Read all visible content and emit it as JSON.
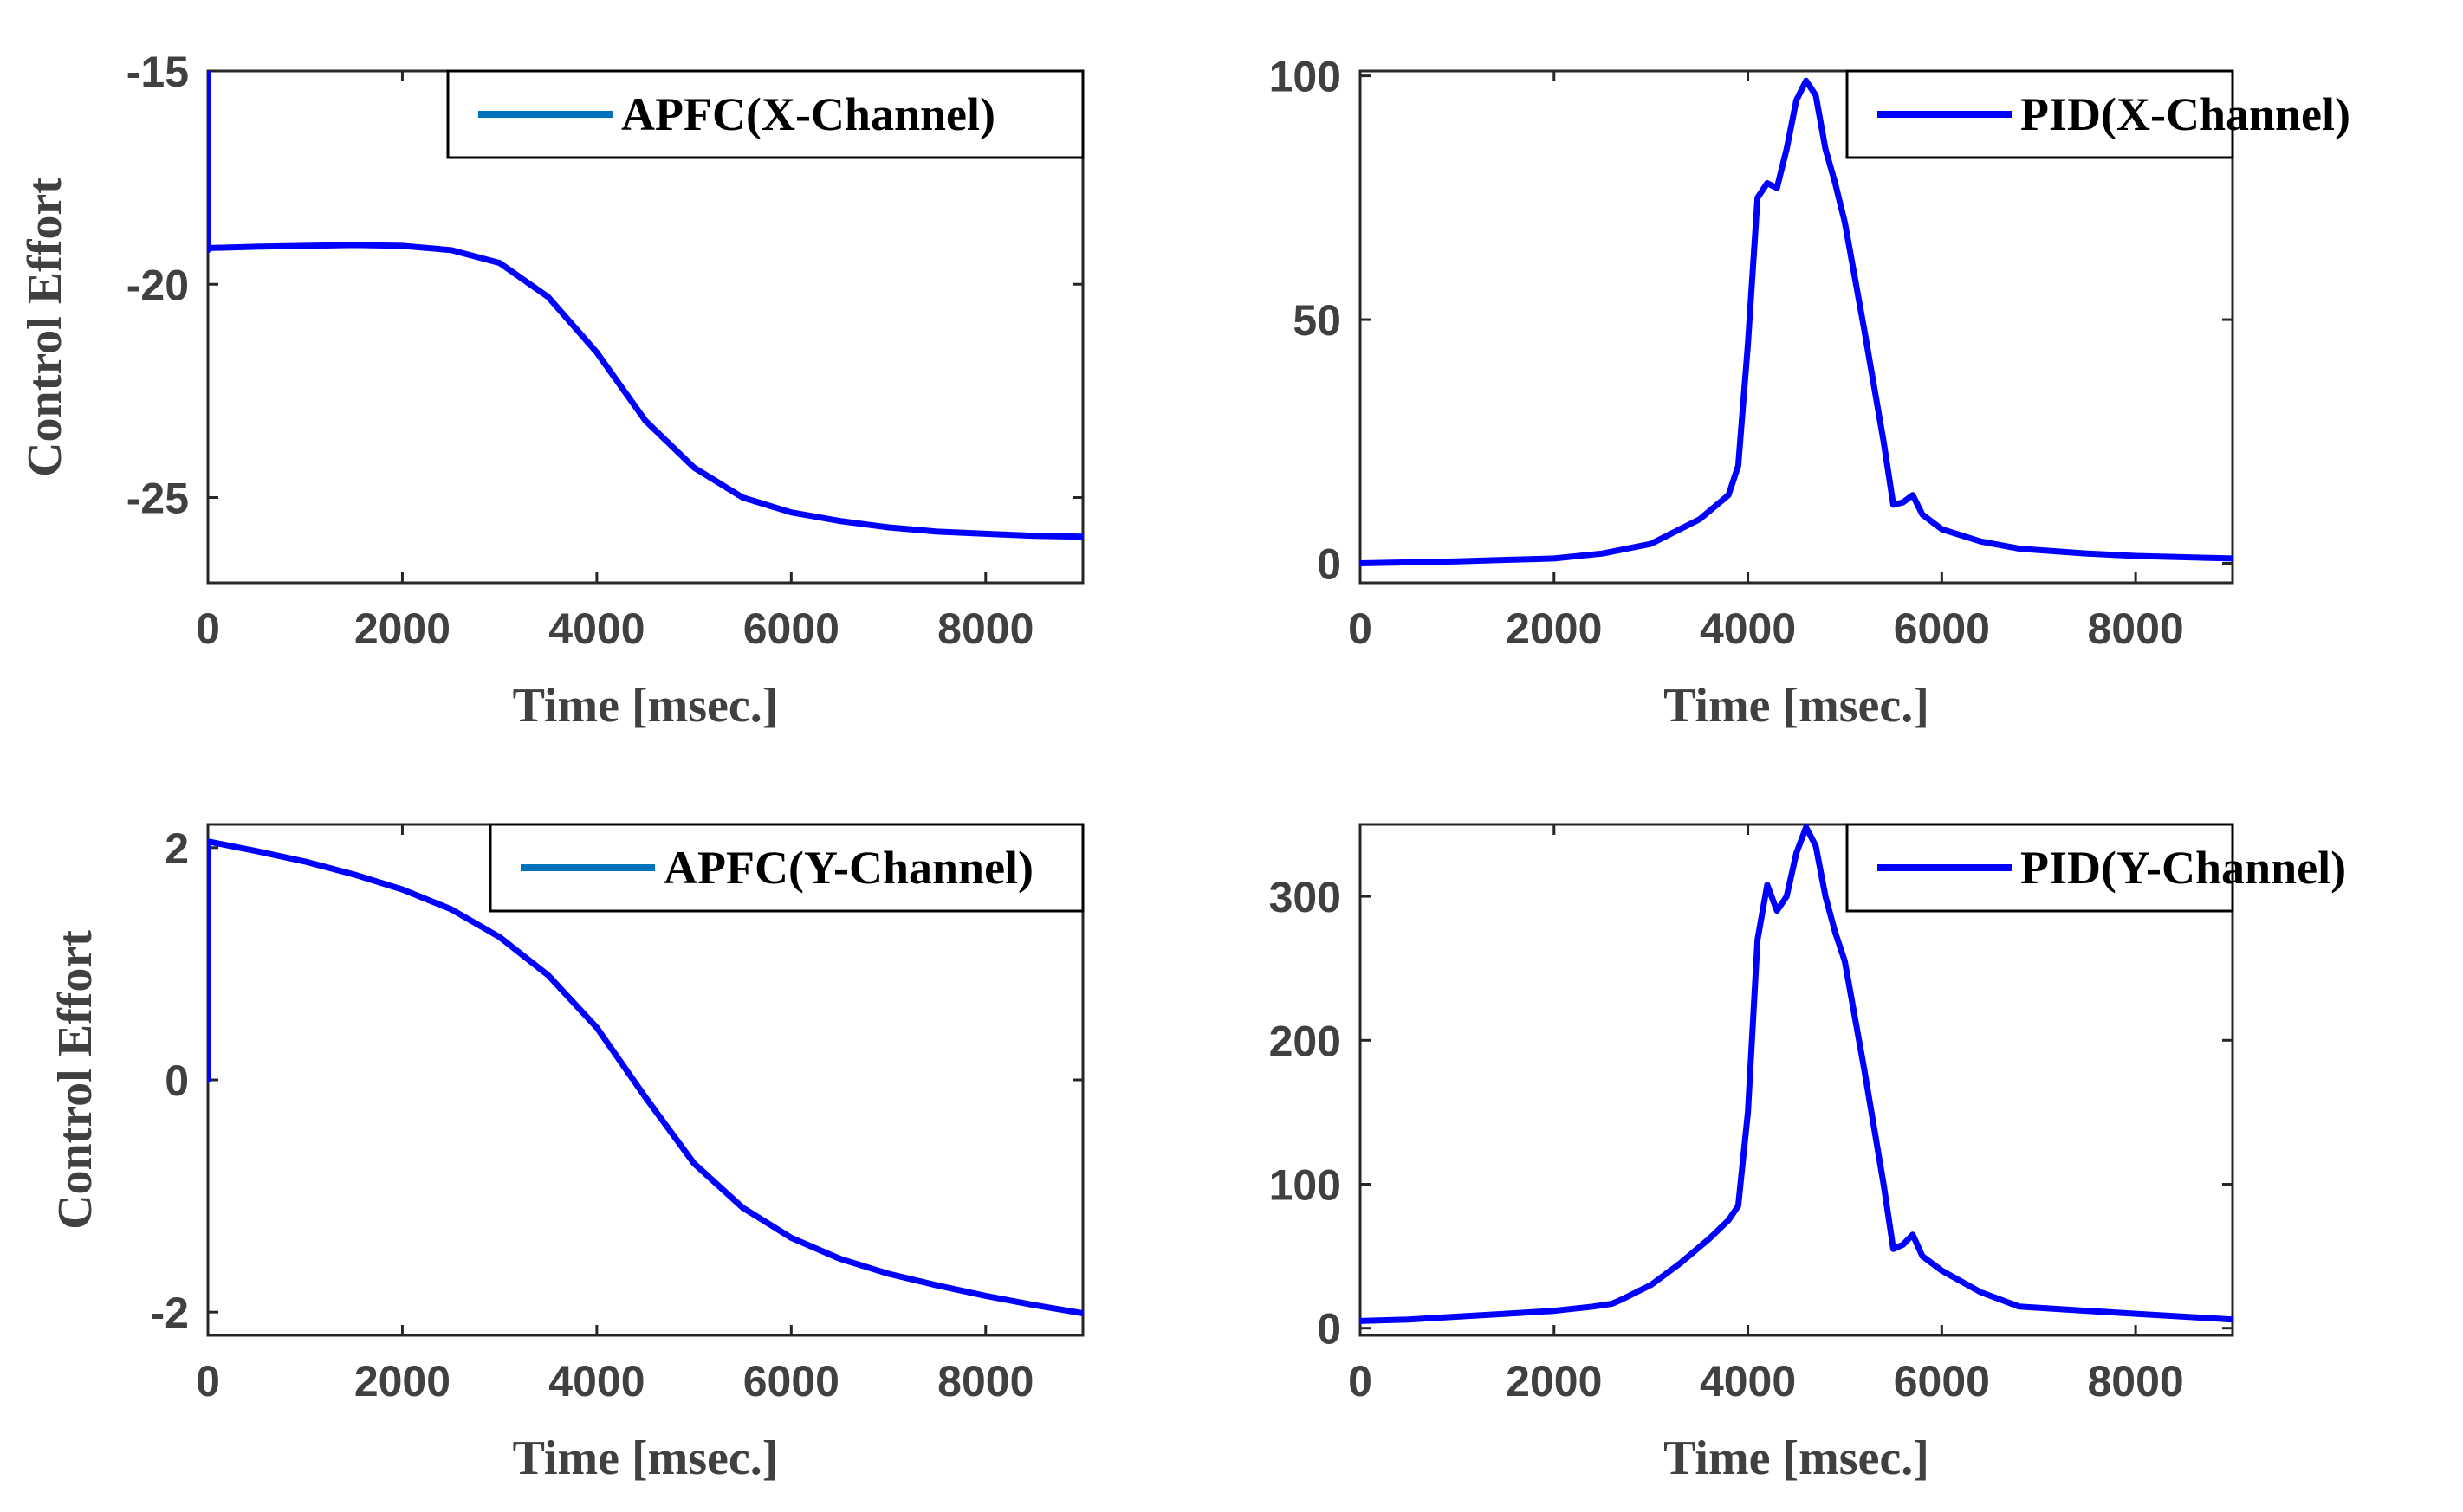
{
  "colors": {
    "series": "#0000ff",
    "legend_apfc": "#0072bd",
    "axis": "#262626",
    "text": "#404040"
  },
  "chart_data": [
    {
      "type": "line",
      "title": "",
      "xlabel": "Time [msec.]",
      "ylabel": "Control Effort",
      "xlim": [
        0,
        9000
      ],
      "ylim": [
        -27,
        -15
      ],
      "xticks": [
        "0",
        "2000",
        "4000",
        "6000",
        "8000"
      ],
      "yticks": [
        "-15",
        "-20",
        "-25"
      ],
      "legend": "APFC(X-Channel)",
      "series": [
        {
          "name": "APFC(X-Channel)",
          "x": [
            0,
            0,
            20,
            500,
            1000,
            1500,
            2000,
            2500,
            3000,
            3500,
            4000,
            4500,
            5000,
            5500,
            6000,
            6500,
            7000,
            7500,
            8000,
            8500,
            9000
          ],
          "y": [
            -15,
            -19.2,
            -19.15,
            -19.12,
            -19.1,
            -19.08,
            -19.1,
            -19.2,
            -19.5,
            -20.3,
            -21.6,
            -23.2,
            -24.3,
            -25,
            -25.35,
            -25.55,
            -25.7,
            -25.8,
            -25.85,
            -25.9,
            -25.92
          ]
        }
      ]
    },
    {
      "type": "line",
      "title": "",
      "xlabel": "Time [msec.]",
      "ylabel": "",
      "xlim": [
        0,
        9000
      ],
      "ylim": [
        -4,
        101
      ],
      "xticks": [
        "0",
        "2000",
        "4000",
        "6000",
        "8000"
      ],
      "yticks": [
        "0",
        "50",
        "100"
      ],
      "legend": "PID(X-Channel)",
      "series": [
        {
          "name": "PID(X-Channel)",
          "x": [
            0,
            500,
            1000,
            1500,
            2000,
            2500,
            3000,
            3500,
            3800,
            3900,
            4000,
            4100,
            4200,
            4300,
            4400,
            4500,
            4600,
            4700,
            4800,
            4900,
            5000,
            5200,
            5400,
            5500,
            5600,
            5700,
            5800,
            6000,
            6400,
            6800,
            7500,
            8000,
            9000
          ],
          "y": [
            0,
            0.2,
            0.4,
            0.7,
            1,
            2,
            4,
            9,
            14,
            20,
            45,
            75,
            78,
            77,
            85,
            95,
            99,
            96,
            85,
            78,
            70,
            48,
            25,
            12,
            12.5,
            14,
            10,
            7,
            4.5,
            3,
            2,
            1.5,
            1
          ]
        }
      ]
    },
    {
      "type": "line",
      "title": "",
      "xlabel": "Time [msec.]",
      "ylabel": "Control Effort",
      "xlim": [
        0,
        9000
      ],
      "ylim": [
        -2.2,
        2.2
      ],
      "xticks": [
        "0",
        "2000",
        "4000",
        "6000",
        "8000"
      ],
      "yticks": [
        "2",
        "0",
        "-2"
      ],
      "legend": "APFC(Y-Channel)",
      "series": [
        {
          "name": "APFC(Y-Channel)",
          "x": [
            0,
            0,
            20,
            500,
            1000,
            1500,
            2000,
            2500,
            3000,
            3500,
            4000,
            4500,
            5000,
            5500,
            6000,
            6500,
            7000,
            7500,
            8000,
            8500,
            9000
          ],
          "y": [
            0,
            2.05,
            2.05,
            1.97,
            1.88,
            1.77,
            1.64,
            1.47,
            1.23,
            0.9,
            0.45,
            -0.15,
            -0.72,
            -1.1,
            -1.36,
            -1.54,
            -1.67,
            -1.77,
            -1.86,
            -1.94,
            -2.01
          ]
        }
      ]
    },
    {
      "type": "line",
      "title": "",
      "xlabel": "Time [msec.]",
      "ylabel": "",
      "xlim": [
        0,
        9000
      ],
      "ylim": [
        -5,
        350
      ],
      "xticks": [
        "0",
        "2000",
        "4000",
        "6000",
        "8000"
      ],
      "yticks": [
        "0",
        "100",
        "200",
        "300"
      ],
      "legend": "PID(Y-Channel)",
      "series": [
        {
          "name": "PID(Y-Channel)",
          "x": [
            0,
            500,
            1000,
            1500,
            2000,
            2400,
            2600,
            2700,
            3000,
            3300,
            3600,
            3800,
            3900,
            4000,
            4100,
            4200,
            4300,
            4400,
            4500,
            4600,
            4700,
            4800,
            4900,
            5000,
            5200,
            5400,
            5500,
            5600,
            5700,
            5800,
            6000,
            6400,
            6800,
            7500,
            8000,
            9000
          ],
          "y": [
            5,
            6,
            8,
            10,
            12,
            15,
            17,
            20,
            30,
            45,
            62,
            75,
            85,
            150,
            270,
            308,
            290,
            300,
            330,
            348,
            335,
            300,
            275,
            255,
            180,
            100,
            55,
            58,
            65,
            50,
            40,
            25,
            15,
            12,
            10,
            6
          ]
        }
      ]
    }
  ]
}
